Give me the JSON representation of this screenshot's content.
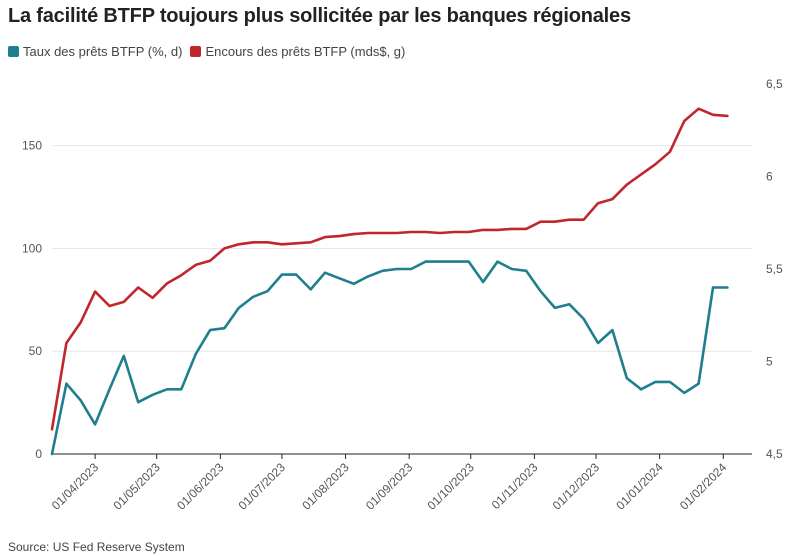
{
  "chart_data": {
    "type": "line",
    "title": "La facilité BTFP toujours plus sollicitée par les banques régionales",
    "source": "Source: US Fed Reserve System",
    "grid": true,
    "legend_position": "top-left",
    "x_tick_labels": [
      "01/04/2023",
      "01/05/2023",
      "01/06/2023",
      "01/07/2023",
      "01/08/2023",
      "01/09/2023",
      "01/10/2023",
      "01/11/2023",
      "01/12/2023",
      "01/01/2024",
      "01/02/2024"
    ],
    "y_left": {
      "ticks": [
        "0",
        "50",
        "100",
        "150"
      ],
      "tick_values": [
        0,
        50,
        100,
        150
      ],
      "range": [
        0,
        180
      ]
    },
    "y_right": {
      "ticks": [
        "4,5",
        "5",
        "5,5",
        "6",
        "6,5"
      ],
      "tick_values": [
        4.5,
        5,
        5.5,
        6,
        6.5
      ],
      "range": [
        4.5,
        6.5
      ]
    },
    "x_range_days": [
      -21,
      320
    ],
    "series": [
      {
        "name": "Taux des prêts BTFP (%, d)",
        "color": "#1f7f8f",
        "axis": "right",
        "points": [
          [
            -21,
            4.5
          ],
          [
            -14,
            4.88
          ],
          [
            -7,
            4.79
          ],
          [
            0,
            4.66
          ],
          [
            7,
            4.85
          ],
          [
            14,
            5.03
          ],
          [
            21,
            4.78
          ],
          [
            28,
            4.82
          ],
          [
            35,
            4.85
          ],
          [
            42,
            4.85
          ],
          [
            49,
            5.04
          ],
          [
            56,
            5.17
          ],
          [
            63,
            5.18
          ],
          [
            70,
            5.29
          ],
          [
            77,
            5.35
          ],
          [
            84,
            5.38
          ],
          [
            91,
            5.47
          ],
          [
            98,
            5.47
          ],
          [
            105,
            5.39
          ],
          [
            112,
            5.48
          ],
          [
            119,
            5.45
          ],
          [
            126,
            5.42
          ],
          [
            133,
            5.46
          ],
          [
            140,
            5.49
          ],
          [
            147,
            5.5
          ],
          [
            154,
            5.5
          ],
          [
            161,
            5.54
          ],
          [
            168,
            5.54
          ],
          [
            175,
            5.54
          ],
          [
            182,
            5.54
          ],
          [
            189,
            5.43
          ],
          [
            196,
            5.54
          ],
          [
            203,
            5.5
          ],
          [
            210,
            5.49
          ],
          [
            217,
            5.38
          ],
          [
            224,
            5.29
          ],
          [
            231,
            5.31
          ],
          [
            238,
            5.23
          ],
          [
            245,
            5.1
          ],
          [
            252,
            5.17
          ],
          [
            259,
            4.91
          ],
          [
            266,
            4.85
          ],
          [
            273,
            4.89
          ],
          [
            280,
            4.89
          ],
          [
            287,
            4.83
          ],
          [
            294,
            4.88
          ],
          [
            301,
            5.4
          ],
          [
            308,
            5.4
          ]
        ]
      },
      {
        "name": "Encours des prêts BTFP (mds$, g)",
        "color": "#c0272d",
        "axis": "left",
        "points": [
          [
            -21,
            12
          ],
          [
            -14,
            54
          ],
          [
            -7,
            64
          ],
          [
            0,
            79
          ],
          [
            7,
            72
          ],
          [
            14,
            74
          ],
          [
            21,
            81
          ],
          [
            28,
            76
          ],
          [
            35,
            83
          ],
          [
            42,
            87
          ],
          [
            49,
            92
          ],
          [
            56,
            94
          ],
          [
            63,
            100
          ],
          [
            70,
            102
          ],
          [
            77,
            103
          ],
          [
            84,
            103
          ],
          [
            91,
            102
          ],
          [
            98,
            102.5
          ],
          [
            105,
            103
          ],
          [
            112,
            105.5
          ],
          [
            119,
            106
          ],
          [
            126,
            107
          ],
          [
            133,
            107.5
          ],
          [
            140,
            107.5
          ],
          [
            147,
            107.5
          ],
          [
            154,
            108
          ],
          [
            161,
            108
          ],
          [
            168,
            107.5
          ],
          [
            175,
            108
          ],
          [
            182,
            108
          ],
          [
            189,
            109
          ],
          [
            196,
            109
          ],
          [
            203,
            109.5
          ],
          [
            210,
            109.5
          ],
          [
            217,
            113
          ],
          [
            224,
            113
          ],
          [
            231,
            114
          ],
          [
            238,
            114
          ],
          [
            245,
            122
          ],
          [
            252,
            124
          ],
          [
            259,
            131
          ],
          [
            266,
            136
          ],
          [
            273,
            141
          ],
          [
            280,
            147
          ],
          [
            287,
            162
          ],
          [
            294,
            168
          ],
          [
            301,
            165
          ],
          [
            308,
            164.5
          ]
        ]
      }
    ]
  }
}
